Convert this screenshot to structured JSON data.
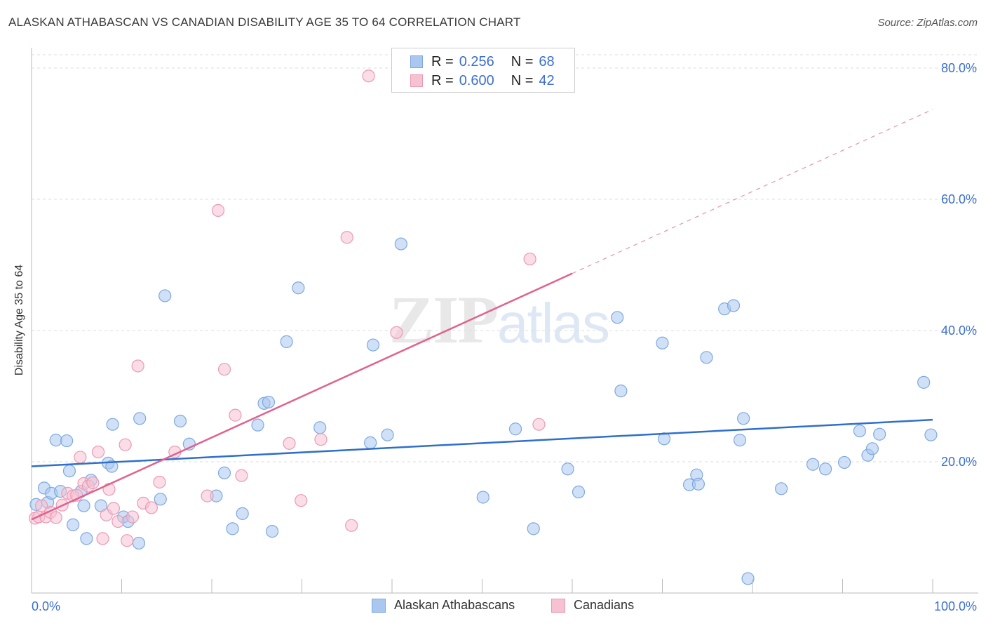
{
  "title": "ALASKAN ATHABASCAN VS CANADIAN DISABILITY AGE 35 TO 64 CORRELATION CHART",
  "source": "Source: ZipAtlas.com",
  "watermark": {
    "zip": "ZIP",
    "atlas": "atlas"
  },
  "legend": {
    "series1": {
      "r_label": "R =",
      "r_value": "0.256",
      "n_label": "N =",
      "n_value": "68"
    },
    "series2": {
      "r_label": "R =",
      "r_value": "0.600",
      "n_label": "N =",
      "n_value": "42"
    }
  },
  "colors": {
    "blue_fill": "#a9c7ef",
    "blue_stroke": "#7ea9e0",
    "blue_line": "#2f6fcc",
    "pink_fill": "#f6c1d1",
    "pink_stroke": "#ec9ab4",
    "pink_line": "#e0628e",
    "tick_label": "#3b6fd1",
    "grid": "#dddddd"
  },
  "chart_data": {
    "type": "scatter",
    "title": "ALASKAN ATHABASCAN VS CANADIAN DISABILITY AGE 35 TO 64 CORRELATION CHART",
    "xlabel": "",
    "ylabel": "Disability Age 35 to 64",
    "xlim": [
      0,
      100
    ],
    "ylim": [
      0,
      80
    ],
    "x_tick_labels": [
      "0.0%",
      "100.0%"
    ],
    "y_ticks": [
      20,
      40,
      60,
      80
    ],
    "y_tick_labels": [
      "20.0%",
      "40.0%",
      "60.0%",
      "80.0%"
    ],
    "legend_labels": [
      "Alaskan Athabascans",
      "Canadians"
    ],
    "series": [
      {
        "name": "Alaskan Athabascans",
        "color": "#a9c7ef",
        "trend": {
          "x0": 0,
          "y0": 19.3,
          "x1": 100,
          "y1": 26.4
        },
        "points": [
          [
            0.5,
            13.5
          ],
          [
            1.4,
            16.0
          ],
          [
            1.8,
            13.8
          ],
          [
            2.2,
            15.2
          ],
          [
            2.7,
            23.3
          ],
          [
            3.2,
            15.5
          ],
          [
            3.9,
            23.2
          ],
          [
            4.2,
            18.6
          ],
          [
            4.6,
            10.4
          ],
          [
            5.5,
            15.5
          ],
          [
            5.8,
            13.3
          ],
          [
            6.1,
            8.3
          ],
          [
            6.6,
            17.2
          ],
          [
            7.7,
            13.3
          ],
          [
            8.5,
            19.8
          ],
          [
            8.9,
            19.3
          ],
          [
            9.0,
            25.7
          ],
          [
            10.2,
            11.6
          ],
          [
            10.7,
            10.9
          ],
          [
            11.9,
            7.6
          ],
          [
            12.0,
            26.6
          ],
          [
            14.3,
            14.3
          ],
          [
            14.8,
            45.3
          ],
          [
            16.5,
            26.2
          ],
          [
            17.5,
            22.7
          ],
          [
            20.5,
            14.8
          ],
          [
            21.4,
            18.3
          ],
          [
            22.3,
            9.8
          ],
          [
            23.4,
            12.1
          ],
          [
            25.1,
            25.6
          ],
          [
            25.8,
            28.9
          ],
          [
            26.3,
            29.1
          ],
          [
            26.7,
            9.4
          ],
          [
            28.3,
            38.3
          ],
          [
            29.6,
            46.5
          ],
          [
            32.0,
            25.2
          ],
          [
            37.6,
            22.9
          ],
          [
            37.9,
            37.8
          ],
          [
            39.5,
            24.1
          ],
          [
            41.0,
            53.2
          ],
          [
            50.1,
            14.6
          ],
          [
            53.7,
            25.0
          ],
          [
            55.7,
            9.8
          ],
          [
            59.5,
            18.9
          ],
          [
            60.7,
            15.4
          ],
          [
            65.0,
            42.0
          ],
          [
            65.4,
            30.8
          ],
          [
            70.0,
            38.1
          ],
          [
            70.2,
            23.5
          ],
          [
            73.0,
            16.5
          ],
          [
            73.8,
            18.0
          ],
          [
            74.0,
            16.6
          ],
          [
            74.9,
            35.9
          ],
          [
            76.9,
            43.3
          ],
          [
            77.9,
            43.8
          ],
          [
            78.6,
            23.3
          ],
          [
            79.0,
            26.6
          ],
          [
            79.5,
            2.2
          ],
          [
            83.2,
            15.9
          ],
          [
            86.7,
            19.6
          ],
          [
            88.1,
            18.9
          ],
          [
            90.2,
            19.9
          ],
          [
            91.9,
            24.7
          ],
          [
            92.8,
            21.0
          ],
          [
            93.3,
            22.0
          ],
          [
            94.1,
            24.2
          ],
          [
            99.0,
            32.1
          ],
          [
            99.8,
            24.1
          ]
        ]
      },
      {
        "name": "Canadians",
        "color": "#f6c1d1",
        "trend": {
          "x0": 0,
          "y0": 11.2,
          "x1": 60,
          "y1": 48.7,
          "dash_x1": 100,
          "dash_y1": 73.7
        },
        "points": [
          [
            0.4,
            11.4
          ],
          [
            0.8,
            11.6
          ],
          [
            1.1,
            13.3
          ],
          [
            1.6,
            11.6
          ],
          [
            2.1,
            12.3
          ],
          [
            2.7,
            11.5
          ],
          [
            3.4,
            13.4
          ],
          [
            4.0,
            15.2
          ],
          [
            4.6,
            14.8
          ],
          [
            5.0,
            14.9
          ],
          [
            5.4,
            20.7
          ],
          [
            5.8,
            16.7
          ],
          [
            6.3,
            16.3
          ],
          [
            6.8,
            16.8
          ],
          [
            7.4,
            21.5
          ],
          [
            7.9,
            8.3
          ],
          [
            8.3,
            11.9
          ],
          [
            8.6,
            15.8
          ],
          [
            9.1,
            12.9
          ],
          [
            9.6,
            10.9
          ],
          [
            10.4,
            22.6
          ],
          [
            10.6,
            8.0
          ],
          [
            11.2,
            11.6
          ],
          [
            11.8,
            34.6
          ],
          [
            12.4,
            13.7
          ],
          [
            13.3,
            13.0
          ],
          [
            14.2,
            16.9
          ],
          [
            15.9,
            21.5
          ],
          [
            19.5,
            14.8
          ],
          [
            20.7,
            58.3
          ],
          [
            21.4,
            34.1
          ],
          [
            22.6,
            27.1
          ],
          [
            23.3,
            17.9
          ],
          [
            28.6,
            22.8
          ],
          [
            29.9,
            14.1
          ],
          [
            32.1,
            23.4
          ],
          [
            35.0,
            54.2
          ],
          [
            35.5,
            10.3
          ],
          [
            37.4,
            78.8
          ],
          [
            40.5,
            39.7
          ],
          [
            55.3,
            50.9
          ],
          [
            56.3,
            25.7
          ]
        ]
      }
    ]
  }
}
